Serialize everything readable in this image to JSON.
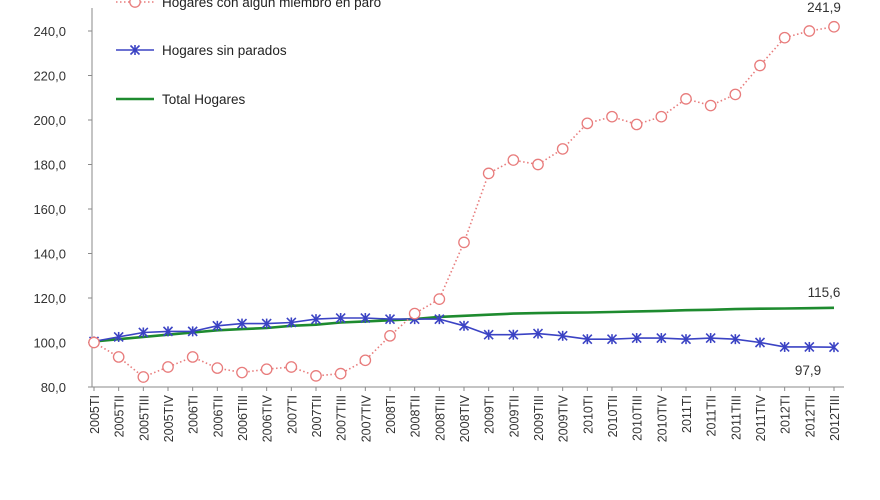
{
  "chart_data": {
    "type": "line",
    "title": "",
    "xlabel": "",
    "ylabel": "",
    "ylim": [
      80,
      240
    ],
    "yticks": [
      80,
      100,
      120,
      140,
      160,
      180,
      200,
      220,
      240
    ],
    "ytick_labels": [
      "80,0",
      "100,0",
      "120,0",
      "140,0",
      "160,0",
      "180,0",
      "200,0",
      "220,0",
      "240,0"
    ],
    "grid": false,
    "legend_position": "top-left",
    "categories": [
      "2005TI",
      "2005TII",
      "2005TIII",
      "2005TIV",
      "2006TI",
      "2006TII",
      "2006TIII",
      "2006TIV",
      "2007TI",
      "2007TII",
      "2007TIII",
      "2007TIV",
      "2008TI",
      "2008TII",
      "2008TIII",
      "2008TIV",
      "2009TI",
      "2009TII",
      "2009TIII",
      "2009TIV",
      "2010TI",
      "2010TII",
      "2010TIII",
      "2010TIV",
      "2011TI",
      "2011TII",
      "2011TIII",
      "2011TIV",
      "2012TI",
      "2012TII",
      "2012TIII"
    ],
    "series": [
      {
        "name": "Hogares con algún miembro en paro",
        "color": "#e87c7c",
        "marker": "circle",
        "line_style": "dotted",
        "values": [
          100.0,
          93.5,
          84.5,
          89.0,
          93.5,
          88.5,
          86.5,
          88.0,
          89.0,
          85.0,
          86.0,
          92.0,
          103.0,
          113.0,
          119.5,
          145.0,
          176.0,
          182.0,
          180.0,
          187.0,
          198.5,
          201.5,
          198.0,
          201.5,
          209.5,
          206.5,
          211.5,
          224.5,
          237.0,
          240.0,
          241.9
        ]
      },
      {
        "name": "Hogares sin parados",
        "color": "#3b43c4",
        "marker": "asterisk",
        "line_style": "solid",
        "values": [
          100.5,
          102.5,
          104.5,
          105.0,
          105.0,
          107.5,
          108.5,
          108.5,
          109.0,
          110.5,
          111.0,
          111.0,
          110.5,
          110.5,
          110.5,
          107.5,
          103.5,
          103.5,
          104.0,
          103.0,
          101.5,
          101.5,
          102.0,
          102.0,
          101.5,
          102.0,
          101.5,
          100.0,
          98.0,
          98.0,
          97.9
        ]
      },
      {
        "name": "Total Hogares",
        "color": "#1e8b2f",
        "marker": "none",
        "line_style": "solid",
        "values": [
          100.5,
          101.5,
          102.5,
          103.5,
          104.5,
          105.5,
          106.0,
          106.5,
          107.5,
          108.0,
          109.0,
          109.5,
          110.0,
          110.5,
          111.5,
          112.0,
          112.5,
          113.0,
          113.2,
          113.4,
          113.5,
          113.7,
          114.0,
          114.2,
          114.5,
          114.7,
          115.0,
          115.2,
          115.3,
          115.4,
          115.6
        ]
      }
    ],
    "annotations": [
      {
        "series": 0,
        "index": 30,
        "text": "241,9"
      },
      {
        "series": 2,
        "index": 30,
        "text": "115,6"
      },
      {
        "series": 1,
        "index": 30,
        "text": "97,9"
      }
    ]
  }
}
